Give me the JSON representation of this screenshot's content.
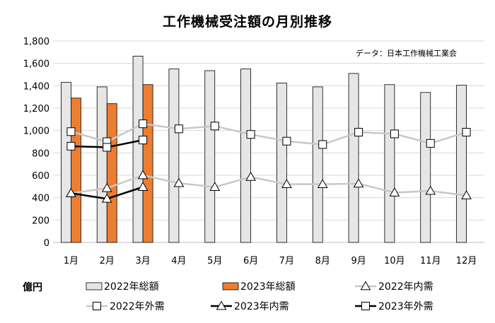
{
  "chart_data": {
    "type": "bar",
    "title": "工作機械受注額の月別推移",
    "source_note": "データ：日本工作機械工業会",
    "unit_label": "億円",
    "categories": [
      "1月",
      "2月",
      "3月",
      "4月",
      "5月",
      "6月",
      "7月",
      "8月",
      "9月",
      "10月",
      "11月",
      "12月"
    ],
    "ylim": [
      0,
      1800
    ],
    "yticks": [
      0,
      200,
      400,
      600,
      800,
      1000,
      1200,
      1400,
      1600,
      1800
    ],
    "ytick_labels": [
      "0",
      "200",
      "400",
      "600",
      "800",
      "1,000",
      "1,200",
      "1,400",
      "1,600",
      "1,800"
    ],
    "grid": true,
    "legend_position": "bottom",
    "bar_series": [
      {
        "name": "2022年総額",
        "color": "#e6e6e6",
        "values": [
          1430,
          1390,
          1665,
          1550,
          1535,
          1550,
          1425,
          1390,
          1510,
          1410,
          1340,
          1405
        ]
      },
      {
        "name": "2023年総額",
        "color": "#ed7d31",
        "values": [
          1290,
          1240,
          1410,
          null,
          null,
          null,
          null,
          null,
          null,
          null,
          null,
          null
        ]
      }
    ],
    "line_series": [
      {
        "name": "2022年内需",
        "color": "#c8c8c8",
        "marker": "triangle",
        "values": [
          440,
          485,
          600,
          530,
          495,
          585,
          520,
          520,
          525,
          445,
          460,
          420
        ]
      },
      {
        "name": "2022年外需",
        "color": "#c8c8c8",
        "marker": "square",
        "values": [
          990,
          900,
          1060,
          1015,
          1040,
          965,
          905,
          875,
          985,
          970,
          885,
          985
        ]
      },
      {
        "name": "2023年内需",
        "color": "#000000",
        "marker": "triangle",
        "values": [
          440,
          390,
          495,
          null,
          null,
          null,
          null,
          null,
          null,
          null,
          null,
          null
        ]
      },
      {
        "name": "2023年外需",
        "color": "#000000",
        "marker": "square",
        "values": [
          860,
          850,
          915,
          null,
          null,
          null,
          null,
          null,
          null,
          null,
          null,
          null
        ]
      }
    ]
  }
}
